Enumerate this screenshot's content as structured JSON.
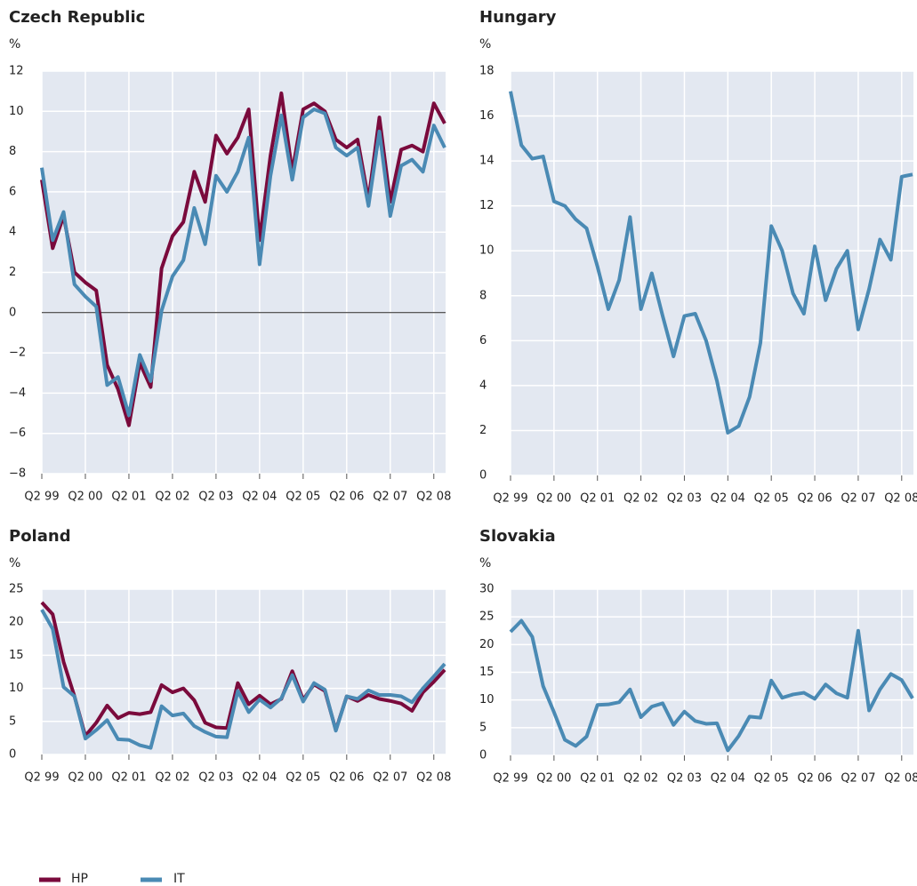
{
  "chart_data": [
    {
      "type": "line",
      "title": "Czech Republic",
      "y_label": "%",
      "categories": [
        "Q2 99",
        null,
        null,
        null,
        "Q2 00",
        null,
        null,
        null,
        "Q2 01",
        null,
        null,
        null,
        "Q2 02",
        null,
        null,
        null,
        "Q2 03",
        null,
        null,
        null,
        "Q2 04",
        null,
        null,
        null,
        "Q2 05",
        null,
        null,
        null,
        "Q2 06",
        null,
        null,
        null,
        "Q2 07",
        null,
        null,
        null,
        "Q2 08",
        null
      ],
      "series": [
        {
          "name": "HP",
          "color": "#7a0a3c",
          "values": [
            6.6,
            3.2,
            4.8,
            2.0,
            1.5,
            1.1,
            -2.6,
            -3.8,
            -5.6,
            -2.5,
            -3.7,
            2.2,
            3.8,
            4.5,
            7.0,
            5.5,
            8.8,
            7.9,
            8.7,
            10.1,
            3.6,
            7.8,
            10.9,
            7.0,
            10.1,
            10.4,
            10.0,
            8.6,
            8.2,
            8.6,
            5.6,
            9.7,
            5.5,
            8.1,
            8.3,
            8.0,
            10.4,
            9.4
          ]
        },
        {
          "name": "IT",
          "color": "#4a8ab4",
          "values": [
            7.2,
            3.6,
            5.0,
            1.4,
            0.8,
            0.3,
            -3.6,
            -3.2,
            -5.1,
            -2.1,
            -3.4,
            0.1,
            1.8,
            2.6,
            5.2,
            3.4,
            6.8,
            6.0,
            7.0,
            8.7,
            2.4,
            6.8,
            9.8,
            6.6,
            9.7,
            10.1,
            9.9,
            8.2,
            7.8,
            8.2,
            5.3,
            9.0,
            4.8,
            7.3,
            7.6,
            7.0,
            9.3,
            8.2
          ]
        }
      ],
      "ylim": [
        -8,
        12
      ],
      "yticks": [
        {
          "value": -8,
          "label": "−8"
        },
        {
          "value": -6,
          "label": "−6"
        },
        {
          "value": -4,
          "label": "−4"
        },
        {
          "value": -2,
          "label": "−2"
        },
        0,
        2,
        4,
        6,
        8,
        10,
        12
      ],
      "grid": true
    },
    {
      "type": "line",
      "title": "Hungary",
      "y_label": "%",
      "categories": [
        "Q2 99",
        null,
        null,
        null,
        "Q2 00",
        null,
        null,
        null,
        "Q2 01",
        null,
        null,
        null,
        "Q2 02",
        null,
        null,
        null,
        "Q2 03",
        null,
        null,
        null,
        "Q2 04",
        null,
        null,
        null,
        "Q2 05",
        null,
        null,
        null,
        "Q2 06",
        null,
        null,
        null,
        "Q2 07",
        null,
        null,
        null,
        "Q2 08",
        null
      ],
      "series": [
        {
          "name": "IT",
          "color": "#4a8ab4",
          "values": [
            17.1,
            14.7,
            14.1,
            14.2,
            12.2,
            12.0,
            11.4,
            11.0,
            9.3,
            7.4,
            8.7,
            11.5,
            7.4,
            9.0,
            7.1,
            5.3,
            7.1,
            7.2,
            6.0,
            4.2,
            1.9,
            2.2,
            3.5,
            5.9,
            11.1,
            10.0,
            8.1,
            7.2,
            10.2,
            7.8,
            9.2,
            10.0,
            6.5,
            8.3,
            10.5,
            9.6,
            13.3,
            13.4
          ]
        }
      ],
      "ylim": [
        0,
        18
      ],
      "yticks": [
        0,
        2,
        4,
        6,
        8,
        10,
        12,
        14,
        16,
        18
      ],
      "grid": true
    },
    {
      "type": "line",
      "title": "Poland",
      "y_label": "%",
      "categories": [
        "Q2 99",
        null,
        null,
        null,
        "Q2 00",
        null,
        null,
        null,
        "Q2 01",
        null,
        null,
        null,
        "Q2 02",
        null,
        null,
        null,
        "Q2 03",
        null,
        null,
        null,
        "Q2 04",
        null,
        null,
        null,
        "Q2 05",
        null,
        null,
        null,
        "Q2 06",
        null,
        null,
        null,
        "Q2 07",
        null,
        null,
        null,
        "Q2 08",
        null
      ],
      "series": [
        {
          "name": "HP",
          "color": "#7a0a3c",
          "values": [
            23.0,
            21.2,
            14.0,
            8.8,
            2.8,
            4.8,
            7.4,
            5.5,
            6.3,
            6.1,
            6.4,
            10.5,
            9.4,
            10.0,
            8.2,
            4.8,
            4.1,
            4.0,
            10.8,
            7.6,
            8.9,
            7.6,
            8.4,
            12.6,
            8.3,
            10.6,
            9.6,
            3.7,
            8.8,
            8.1,
            9.0,
            8.4,
            8.1,
            7.7,
            6.6,
            9.4,
            11.0,
            12.8
          ]
        },
        {
          "name": "IT",
          "color": "#4a8ab4",
          "values": [
            21.9,
            19.0,
            10.2,
            8.8,
            2.4,
            3.7,
            5.2,
            2.3,
            2.2,
            1.4,
            1.0,
            7.3,
            5.9,
            6.2,
            4.3,
            3.4,
            2.7,
            2.6,
            9.6,
            6.4,
            8.3,
            7.1,
            8.5,
            12.0,
            8.0,
            10.8,
            9.8,
            3.6,
            8.8,
            8.4,
            9.7,
            9.0,
            9.0,
            8.8,
            7.9,
            10.0,
            11.8,
            13.7
          ]
        }
      ],
      "ylim": [
        0,
        25
      ],
      "yticks": [
        0,
        5,
        10,
        15,
        20,
        25
      ],
      "grid": true
    },
    {
      "type": "line",
      "title": "Slovakia",
      "y_label": "%",
      "categories": [
        "Q2 99",
        null,
        null,
        null,
        "Q2 00",
        null,
        null,
        null,
        "Q2 01",
        null,
        null,
        null,
        "Q2 02",
        null,
        null,
        null,
        "Q2 03",
        null,
        null,
        null,
        "Q2 04",
        null,
        null,
        null,
        "Q2 05",
        null,
        null,
        null,
        "Q2 06",
        null,
        null,
        null,
        "Q2 07",
        null,
        null,
        null,
        "Q2 08",
        null
      ],
      "series": [
        {
          "name": "IT",
          "color": "#4a8ab4",
          "values": [
            22.3,
            24.3,
            21.4,
            12.5,
            7.8,
            2.8,
            1.7,
            3.4,
            9.1,
            9.2,
            9.6,
            11.9,
            6.9,
            8.8,
            9.4,
            5.5,
            7.9,
            6.2,
            5.7,
            5.8,
            0.9,
            3.5,
            7.0,
            6.8,
            13.5,
            10.4,
            11.0,
            11.3,
            10.2,
            12.8,
            11.2,
            10.4,
            22.5,
            8.1,
            11.9,
            14.7,
            13.6,
            10.3
          ]
        }
      ],
      "ylim": [
        0,
        30
      ],
      "yticks": [
        0,
        5,
        10,
        15,
        20,
        25,
        30
      ],
      "grid": true
    }
  ]
}
